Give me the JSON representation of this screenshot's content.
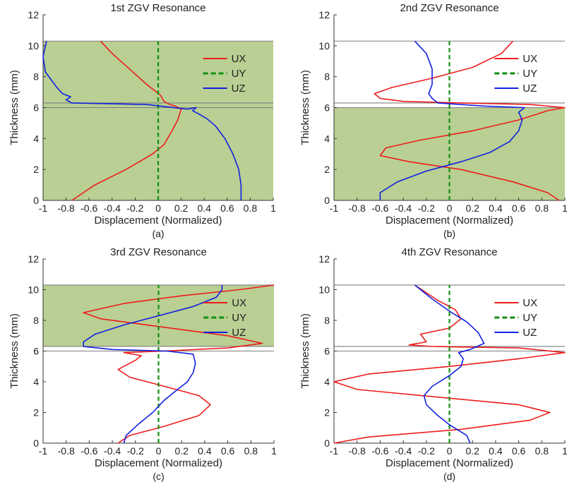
{
  "figure": {
    "colors": {
      "fill": "#b9cf93",
      "ux": "#ee1c1c",
      "uy": "#119011",
      "uz": "#1020e0",
      "hline": "#7f7f7f"
    }
  },
  "chart_data": [
    {
      "type": "line",
      "title": "1st ZGV Resonance",
      "caption": "(a)",
      "xlabel": "Displacement (Normalized)",
      "ylabel": "Thickness (mm)",
      "xlim": [
        -1,
        1
      ],
      "ylim": [
        0,
        12
      ],
      "x_ticks": [
        -1,
        -0.8,
        -0.6,
        -0.4,
        -0.2,
        0,
        0.2,
        0.4,
        0.6,
        0.8,
        1
      ],
      "x_tick_labels": [
        "-1",
        "-0.8",
        "-0.6",
        "-0.4",
        "-0.2",
        "0",
        "0.2",
        "0.4",
        "0.6",
        "0.8",
        "1"
      ],
      "y_ticks": [
        0,
        2,
        4,
        6,
        8,
        10,
        12
      ],
      "y_tick_labels": [
        "0",
        "2",
        "4",
        "6",
        "8",
        "10",
        "12"
      ],
      "interface_lines": [
        6.0,
        6.3,
        10.3
      ],
      "shaded_bands": [
        [
          0,
          6.3
        ],
        [
          6.3,
          10.3
        ]
      ],
      "legend": [
        "UX",
        "UY",
        "UZ"
      ],
      "legend_position": "top-right",
      "series": [
        {
          "name": "UX",
          "style": "solid",
          "points": [
            [
              -0.75,
              0
            ],
            [
              -0.55,
              1
            ],
            [
              -0.28,
              2
            ],
            [
              -0.05,
              3
            ],
            [
              0.05,
              3.6
            ],
            [
              0.12,
              4.5
            ],
            [
              0.17,
              5.2
            ],
            [
              0.2,
              5.9
            ],
            [
              0.15,
              6.1
            ],
            [
              0.1,
              6.2
            ],
            [
              0.05,
              6.4
            ],
            [
              0.02,
              6.8
            ],
            [
              -0.1,
              7.5
            ],
            [
              -0.25,
              8.5
            ],
            [
              -0.4,
              9.5
            ],
            [
              -0.5,
              10.3
            ]
          ]
        },
        {
          "name": "UY",
          "style": "dashed",
          "points": [
            [
              0,
              0
            ],
            [
              0,
              10.3
            ]
          ]
        },
        {
          "name": "UZ",
          "style": "solid",
          "points": [
            [
              0.72,
              0
            ],
            [
              0.72,
              1
            ],
            [
              0.7,
              2
            ],
            [
              0.65,
              3
            ],
            [
              0.58,
              4
            ],
            [
              0.5,
              4.8
            ],
            [
              0.42,
              5.3
            ],
            [
              0.35,
              5.6
            ],
            [
              0.3,
              5.8
            ],
            [
              0.33,
              6.0
            ],
            [
              0.25,
              5.9
            ],
            [
              -0.1,
              6.2
            ],
            [
              -0.75,
              6.3
            ],
            [
              -0.8,
              6.5
            ],
            [
              -0.76,
              6.7
            ],
            [
              -0.83,
              6.9
            ],
            [
              -0.88,
              7.3
            ],
            [
              -0.98,
              8.3
            ],
            [
              -1.0,
              9.3
            ],
            [
              -0.97,
              10.3
            ]
          ]
        }
      ]
    },
    {
      "type": "line",
      "title": "2nd ZGV Resonance",
      "caption": "(b)",
      "xlabel": "Displacement (Normalized)",
      "ylabel": "Thickness (mm)",
      "xlim": [
        -1,
        1
      ],
      "ylim": [
        0,
        12
      ],
      "x_ticks": [
        -1,
        -0.8,
        -0.6,
        -0.4,
        -0.2,
        0,
        0.2,
        0.4,
        0.6,
        0.8,
        1
      ],
      "x_tick_labels": [
        "-1",
        "-0.8",
        "-0.6",
        "-0.4",
        "-0.2",
        "0",
        "0.2",
        "0.4",
        "0.6",
        "0.8",
        "1"
      ],
      "y_ticks": [
        0,
        2,
        4,
        6,
        8,
        10,
        12
      ],
      "y_tick_labels": [
        "0",
        "2",
        "4",
        "6",
        "8",
        "10",
        "12"
      ],
      "interface_lines": [
        6.0,
        6.3,
        10.3
      ],
      "shaded_bands": [
        [
          0,
          6.0
        ]
      ],
      "legend": [
        "UX",
        "UY",
        "UZ"
      ],
      "legend_position": "top-right",
      "series": [
        {
          "name": "UX",
          "style": "solid",
          "points": [
            [
              0.95,
              0
            ],
            [
              0.85,
              0.5
            ],
            [
              0.55,
              1.2
            ],
            [
              0.1,
              2
            ],
            [
              -0.35,
              2.5
            ],
            [
              -0.6,
              2.9
            ],
            [
              -0.55,
              3.4
            ],
            [
              -0.25,
              3.9
            ],
            [
              0.2,
              4.5
            ],
            [
              0.6,
              5.2
            ],
            [
              0.85,
              5.8
            ],
            [
              1.0,
              6.0
            ],
            [
              0.7,
              6.2
            ],
            [
              0.1,
              6.3
            ],
            [
              -0.4,
              6.4
            ],
            [
              -0.6,
              6.6
            ],
            [
              -0.65,
              6.9
            ],
            [
              -0.5,
              7.3
            ],
            [
              -0.15,
              7.9
            ],
            [
              0.2,
              8.6
            ],
            [
              0.45,
              9.5
            ],
            [
              0.55,
              10.3
            ]
          ]
        },
        {
          "name": "UY",
          "style": "dashed",
          "points": [
            [
              0,
              0
            ],
            [
              0,
              10.3
            ]
          ]
        },
        {
          "name": "UZ",
          "style": "solid",
          "points": [
            [
              -0.6,
              0
            ],
            [
              -0.6,
              0.5
            ],
            [
              -0.45,
              1.2
            ],
            [
              -0.2,
              1.9
            ],
            [
              0.1,
              2.5
            ],
            [
              0.35,
              3.1
            ],
            [
              0.52,
              3.8
            ],
            [
              0.6,
              4.5
            ],
            [
              0.63,
              5.2
            ],
            [
              0.6,
              5.7
            ],
            [
              0.65,
              6.0
            ],
            [
              0.3,
              6.1
            ],
            [
              -0.1,
              6.3
            ],
            [
              -0.15,
              6.6
            ],
            [
              -0.18,
              6.9
            ],
            [
              -0.15,
              7.5
            ],
            [
              -0.15,
              8.5
            ],
            [
              -0.2,
              9.5
            ],
            [
              -0.3,
              10.3
            ]
          ]
        }
      ]
    },
    {
      "type": "line",
      "title": "3rd ZGV Resonance",
      "caption": "(c)",
      "xlabel": "Displacement (Normalized)",
      "ylabel": "Thickness (mm)",
      "xlim": [
        -1,
        1
      ],
      "ylim": [
        0,
        12
      ],
      "x_ticks": [
        -1,
        -0.8,
        -0.6,
        -0.4,
        -0.2,
        0,
        0.2,
        0.4,
        0.6,
        0.8,
        1
      ],
      "x_tick_labels": [
        "-1",
        "-0.8",
        "-0.6",
        "-0.4",
        "-0.2",
        "0",
        "0.2",
        "0.4",
        "0.6",
        "0.8",
        "1"
      ],
      "y_ticks": [
        0,
        2,
        4,
        6,
        8,
        10,
        12
      ],
      "y_tick_labels": [
        "0",
        "2",
        "4",
        "6",
        "8",
        "10",
        "12"
      ],
      "interface_lines": [
        6.0,
        6.3,
        10.3
      ],
      "shaded_bands": [
        [
          6.3,
          10.3
        ]
      ],
      "legend": [
        "UX",
        "UY",
        "UZ"
      ],
      "legend_position": "top-right",
      "series": [
        {
          "name": "UX",
          "style": "solid",
          "points": [
            [
              -0.35,
              0
            ],
            [
              -0.25,
              0.5
            ],
            [
              0.05,
              1.1
            ],
            [
              0.35,
              1.8
            ],
            [
              0.45,
              2.5
            ],
            [
              0.35,
              3.1
            ],
            [
              0.05,
              3.7
            ],
            [
              -0.25,
              4.3
            ],
            [
              -0.35,
              4.8
            ],
            [
              -0.2,
              5.4
            ],
            [
              -0.15,
              5.7
            ],
            [
              -0.3,
              5.9
            ],
            [
              0.05,
              6.0
            ],
            [
              0.6,
              6.2
            ],
            [
              0.9,
              6.5
            ],
            [
              0.6,
              7.0
            ],
            [
              0,
              7.6
            ],
            [
              -0.5,
              8.1
            ],
            [
              -0.65,
              8.5
            ],
            [
              -0.3,
              9.1
            ],
            [
              0.2,
              9.6
            ],
            [
              0.7,
              10.0
            ],
            [
              1.0,
              10.3
            ]
          ]
        },
        {
          "name": "UY",
          "style": "dashed",
          "points": [
            [
              0,
              0
            ],
            [
              0,
              10.3
            ]
          ]
        },
        {
          "name": "UZ",
          "style": "solid",
          "points": [
            [
              -0.3,
              0
            ],
            [
              -0.28,
              0.5
            ],
            [
              -0.18,
              1.2
            ],
            [
              -0.05,
              2
            ],
            [
              0.05,
              2.8
            ],
            [
              0.15,
              3.4
            ],
            [
              0.25,
              4
            ],
            [
              0.3,
              4.6
            ],
            [
              0.32,
              5.2
            ],
            [
              0.3,
              5.8
            ],
            [
              0.07,
              6.0
            ],
            [
              -0.4,
              6.1
            ],
            [
              -0.65,
              6.3
            ],
            [
              -0.65,
              6.6
            ],
            [
              -0.55,
              7.1
            ],
            [
              -0.3,
              7.7
            ],
            [
              0,
              8.3
            ],
            [
              0.3,
              8.9
            ],
            [
              0.5,
              9.5
            ],
            [
              0.55,
              10.0
            ],
            [
              0.55,
              10.3
            ]
          ]
        }
      ]
    },
    {
      "type": "line",
      "title": "4th ZGV Resonance",
      "caption": "(d)",
      "xlabel": "Displacement (Normalized)",
      "ylabel": "Thickness (mm)",
      "xlim": [
        -1,
        1
      ],
      "ylim": [
        0,
        12
      ],
      "x_ticks": [
        -1,
        -0.8,
        -0.6,
        -0.4,
        -0.2,
        0,
        0.2,
        0.4,
        0.6,
        0.8,
        1
      ],
      "x_tick_labels": [
        "-1",
        "-0.8",
        "-0.6",
        "-0.4",
        "-0.2",
        "0",
        "0.2",
        "0.4",
        "0.6",
        "0.8",
        "1"
      ],
      "y_ticks": [
        0,
        2,
        4,
        6,
        8,
        10,
        12
      ],
      "y_tick_labels": [
        "0",
        "2",
        "4",
        "6",
        "8",
        "10",
        "12"
      ],
      "interface_lines": [
        6.0,
        6.3,
        10.3
      ],
      "shaded_bands": [],
      "legend": [
        "UX",
        "UY",
        "UZ"
      ],
      "legend_position": "top-right",
      "series": [
        {
          "name": "UX",
          "style": "solid",
          "points": [
            [
              -1.0,
              0
            ],
            [
              -0.7,
              0.4
            ],
            [
              0.1,
              0.9
            ],
            [
              0.7,
              1.5
            ],
            [
              0.87,
              2.0
            ],
            [
              0.6,
              2.5
            ],
            [
              -0.1,
              3.0
            ],
            [
              -0.8,
              3.5
            ],
            [
              -1.0,
              4.0
            ],
            [
              -0.7,
              4.5
            ],
            [
              0,
              5.0
            ],
            [
              0.6,
              5.5
            ],
            [
              1.0,
              5.9
            ],
            [
              0.6,
              6.2
            ],
            [
              -0.15,
              6.3
            ],
            [
              -0.35,
              6.4
            ],
            [
              -0.2,
              6.6
            ],
            [
              -0.25,
              7.1
            ],
            [
              0,
              7.5
            ],
            [
              0.1,
              8.1
            ],
            [
              0.05,
              8.7
            ],
            [
              -0.1,
              9.3
            ],
            [
              -0.3,
              10.3
            ]
          ]
        },
        {
          "name": "UY",
          "style": "dashed",
          "points": [
            [
              0,
              0
            ],
            [
              0,
              10.3
            ]
          ]
        },
        {
          "name": "UZ",
          "style": "solid",
          "points": [
            [
              0.18,
              0
            ],
            [
              0.15,
              0.5
            ],
            [
              0,
              1.2
            ],
            [
              -0.1,
              1.8
            ],
            [
              -0.2,
              2.5
            ],
            [
              -0.22,
              3.1
            ],
            [
              -0.15,
              3.7
            ],
            [
              0,
              4.4
            ],
            [
              0.1,
              5.0
            ],
            [
              0.12,
              5.5
            ],
            [
              0.08,
              5.9
            ],
            [
              0.18,
              6.1
            ],
            [
              0.3,
              6.5
            ],
            [
              0.25,
              7.2
            ],
            [
              0.15,
              7.9
            ],
            [
              0,
              8.6
            ],
            [
              -0.15,
              9.4
            ],
            [
              -0.3,
              10.3
            ]
          ]
        }
      ]
    }
  ]
}
